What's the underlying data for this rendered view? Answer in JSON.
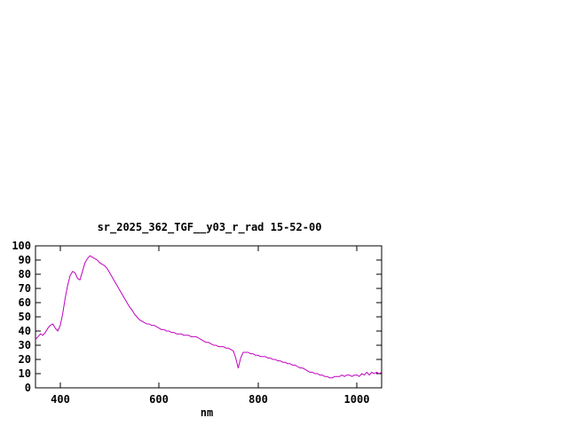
{
  "chart_data": {
    "type": "line",
    "title": "sr_2025_362_TGF__y03_r_rad 15-52-00",
    "xlabel": "nm",
    "ylabel": "",
    "xlim": [
      350,
      1050
    ],
    "ylim": [
      0,
      100
    ],
    "xticks": [
      400,
      600,
      800,
      1000
    ],
    "yticks": [
      0,
      10,
      20,
      30,
      40,
      50,
      60,
      70,
      80,
      90,
      100
    ],
    "grid": false,
    "legend": "none",
    "line_color": "#c000c0",
    "border_color": "#000000",
    "background_color": "#ffffff",
    "series": [
      {
        "x": [
          350,
          355,
          360,
          365,
          370,
          375,
          380,
          385,
          390,
          395,
          400,
          405,
          410,
          415,
          420,
          425,
          430,
          435,
          440,
          445,
          450,
          455,
          460,
          465,
          470,
          475,
          480,
          485,
          490,
          495,
          500,
          505,
          510,
          515,
          520,
          525,
          530,
          535,
          540,
          545,
          550,
          555,
          560,
          565,
          570,
          575,
          580,
          585,
          590,
          595,
          600,
          605,
          610,
          615,
          620,
          625,
          630,
          635,
          640,
          645,
          650,
          655,
          660,
          665,
          670,
          675,
          680,
          685,
          690,
          695,
          700,
          705,
          710,
          715,
          720,
          725,
          730,
          735,
          740,
          745,
          750,
          755,
          760,
          765,
          770,
          775,
          780,
          785,
          790,
          795,
          800,
          805,
          810,
          815,
          820,
          825,
          830,
          835,
          840,
          845,
          850,
          855,
          860,
          865,
          870,
          875,
          880,
          885,
          890,
          895,
          900,
          905,
          910,
          915,
          920,
          925,
          930,
          935,
          940,
          945,
          950,
          955,
          960,
          965,
          970,
          975,
          980,
          985,
          990,
          995,
          1000,
          1005,
          1010,
          1015,
          1020,
          1025,
          1030,
          1035,
          1040,
          1045,
          1050
        ],
        "y": [
          34,
          36,
          38,
          37,
          39,
          42,
          44,
          45,
          42,
          40,
          44,
          52,
          63,
          72,
          79,
          82,
          81,
          77,
          76,
          82,
          88,
          91,
          93,
          92,
          91,
          90,
          88,
          87,
          86,
          84,
          81,
          78,
          75,
          72,
          69,
          66,
          63,
          60,
          57,
          55,
          52,
          50,
          48,
          47,
          46,
          45,
          45,
          44,
          44,
          43,
          42,
          41,
          41,
          40,
          40,
          39,
          39,
          38,
          38,
          38,
          37,
          37,
          37,
          36,
          36,
          36,
          35,
          34,
          33,
          32,
          32,
          31,
          30,
          30,
          29,
          29,
          29,
          28,
          28,
          27,
          26,
          21,
          14,
          21,
          25,
          25,
          25,
          24,
          24,
          23,
          23,
          22,
          22,
          22,
          21,
          21,
          20,
          20,
          19,
          19,
          18,
          18,
          17,
          17,
          16,
          16,
          15,
          14,
          14,
          13,
          12,
          11,
          11,
          10,
          10,
          9,
          9,
          8,
          8,
          7,
          7,
          8,
          8,
          8,
          9,
          8,
          9,
          9,
          8,
          9,
          9,
          8,
          10,
          9,
          11,
          9,
          11,
          10,
          11,
          10,
          11
        ]
      }
    ]
  }
}
